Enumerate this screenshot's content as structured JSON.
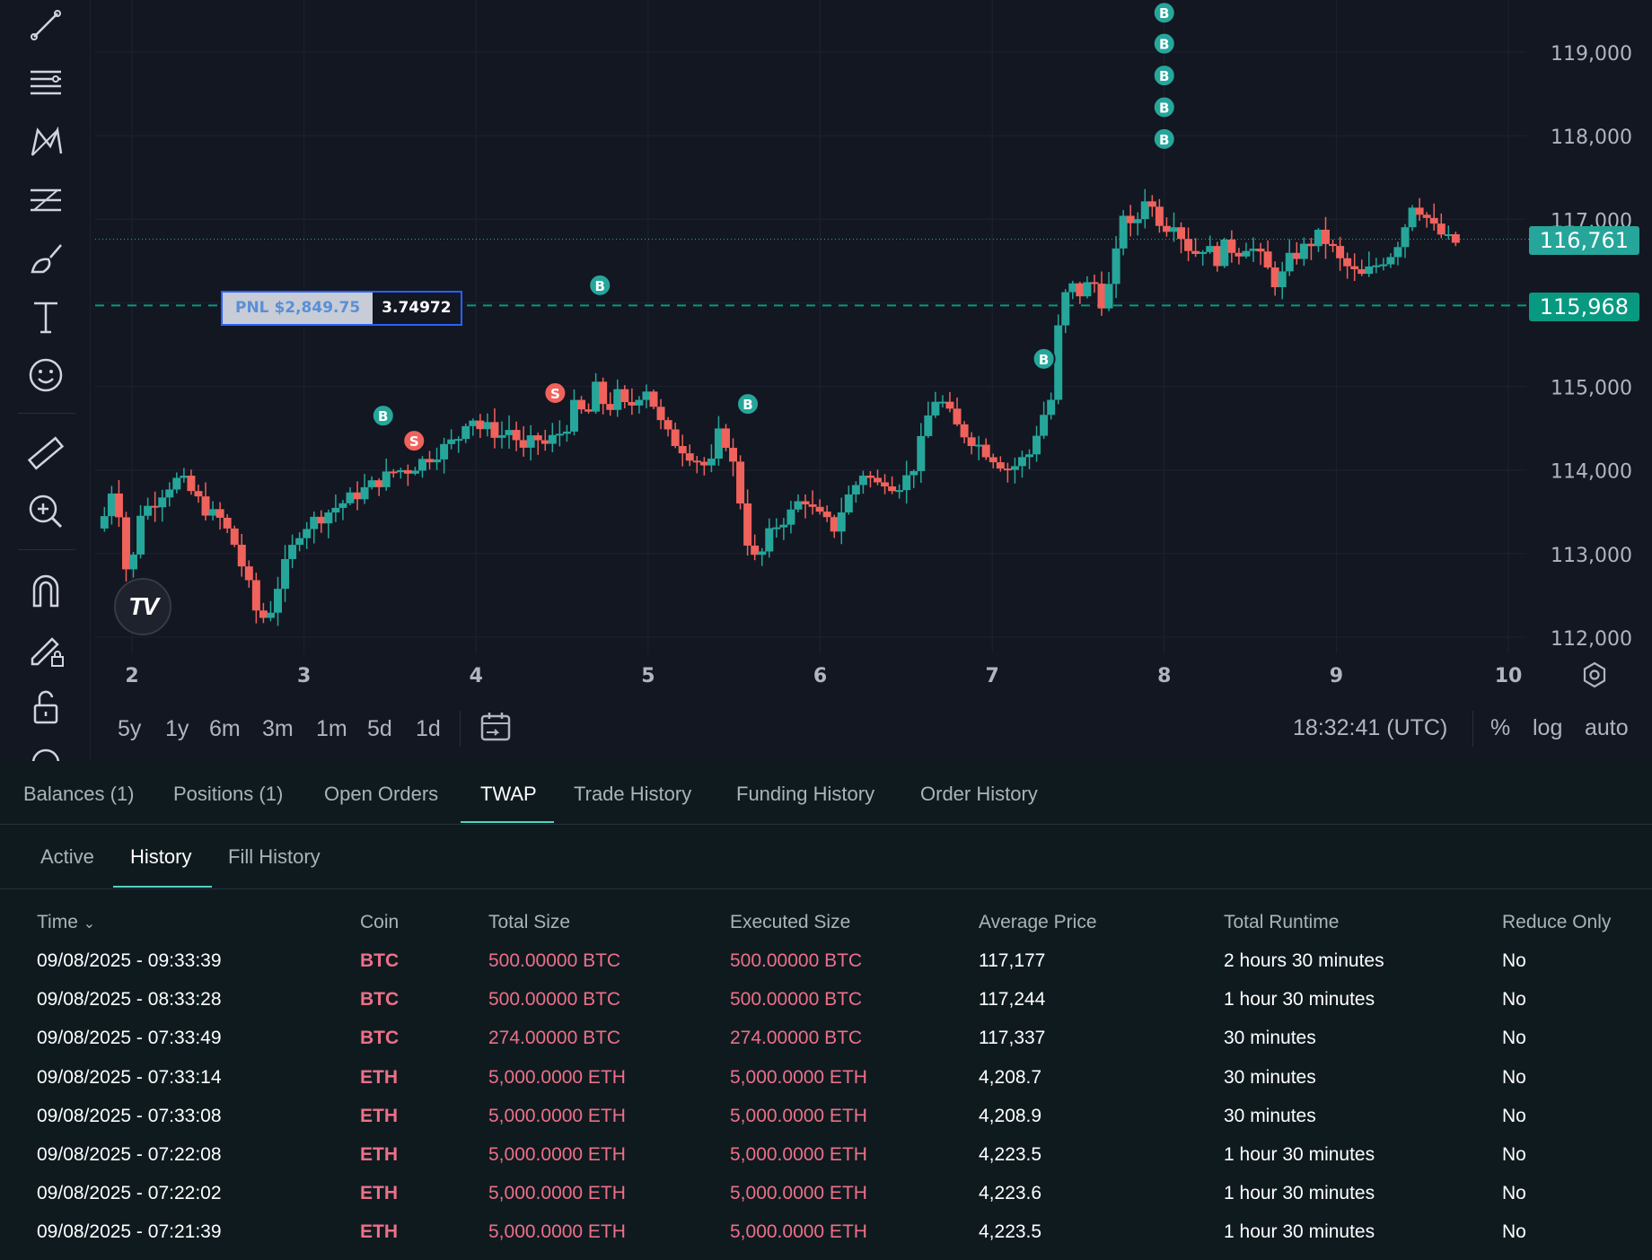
{
  "chart": {
    "y_ticks": [
      "119,000",
      "118,000",
      "117,000",
      "115,000",
      "114,000",
      "113,000",
      "112,000"
    ],
    "x_ticks": [
      "2",
      "3",
      "4",
      "5",
      "6",
      "7",
      "8",
      "9",
      "10"
    ],
    "current_price": {
      "label": "116,761",
      "color": "#26a69a"
    },
    "entry_price": {
      "label": "115,968",
      "color": "#089981"
    },
    "pnl": {
      "label": "PNL $2,849.75",
      "value": "3.74972"
    },
    "colors": {
      "up": "#26a69a",
      "down": "#f0625c",
      "bg": "#131722",
      "grid": "#1e2230"
    },
    "markers": [
      {
        "t": "B",
        "day": 8.0,
        "price": 119470
      },
      {
        "t": "B",
        "day": 8.0,
        "price": 119100
      },
      {
        "t": "B",
        "day": 8.0,
        "price": 118720
      },
      {
        "t": "B",
        "day": 8.0,
        "price": 118340
      },
      {
        "t": "B",
        "day": 8.0,
        "price": 117960
      },
      {
        "t": "B",
        "day": 4.72,
        "price": 116210
      },
      {
        "t": "B",
        "day": 3.46,
        "price": 114650
      },
      {
        "t": "S",
        "day": 3.64,
        "price": 114350
      },
      {
        "t": "S",
        "day": 4.46,
        "price": 114920
      },
      {
        "t": "B",
        "day": 5.58,
        "price": 114790
      },
      {
        "t": "B",
        "day": 7.3,
        "price": 115330
      }
    ]
  },
  "chart_data": {
    "type": "candlestick",
    "x_range": [
      1.8,
      10.1
    ],
    "ylim": [
      111850,
      119750
    ],
    "close_path": [
      [
        1.82,
        113300
      ],
      [
        1.9,
        113900
      ],
      [
        1.98,
        112600
      ],
      [
        2.05,
        113500
      ],
      [
        2.12,
        113600
      ],
      [
        2.2,
        113800
      ],
      [
        2.28,
        113900
      ],
      [
        2.36,
        113700
      ],
      [
        2.44,
        113500
      ],
      [
        2.52,
        113400
      ],
      [
        2.6,
        113100
      ],
      [
        2.68,
        112600
      ],
      [
        2.74,
        112200
      ],
      [
        2.8,
        112300
      ],
      [
        2.86,
        112700
      ],
      [
        2.92,
        113000
      ],
      [
        2.98,
        113300
      ],
      [
        3.06,
        113400
      ],
      [
        3.14,
        113500
      ],
      [
        3.22,
        113600
      ],
      [
        3.3,
        113700
      ],
      [
        3.38,
        113800
      ],
      [
        3.46,
        113900
      ],
      [
        3.54,
        114000
      ],
      [
        3.6,
        114000
      ],
      [
        3.68,
        114100
      ],
      [
        3.76,
        114200
      ],
      [
        3.84,
        114300
      ],
      [
        3.9,
        114400
      ],
      [
        3.96,
        114700
      ],
      [
        4.02,
        114500
      ],
      [
        4.08,
        114500
      ],
      [
        4.14,
        114400
      ],
      [
        4.2,
        114500
      ],
      [
        4.28,
        114200
      ],
      [
        4.34,
        114400
      ],
      [
        4.4,
        114300
      ],
      [
        4.46,
        114400
      ],
      [
        4.52,
        114500
      ],
      [
        4.58,
        114800
      ],
      [
        4.64,
        114600
      ],
      [
        4.7,
        115000
      ],
      [
        4.76,
        114700
      ],
      [
        4.82,
        114900
      ],
      [
        4.88,
        114700
      ],
      [
        4.94,
        114900
      ],
      [
        5.0,
        115000
      ],
      [
        5.06,
        114600
      ],
      [
        5.12,
        114400
      ],
      [
        5.18,
        114300
      ],
      [
        5.24,
        114200
      ],
      [
        5.3,
        114100
      ],
      [
        5.36,
        114000
      ],
      [
        5.42,
        114500
      ],
      [
        5.48,
        114200
      ],
      [
        5.54,
        113600
      ],
      [
        5.6,
        112900
      ],
      [
        5.66,
        113000
      ],
      [
        5.72,
        113300
      ],
      [
        5.78,
        113400
      ],
      [
        5.84,
        113500
      ],
      [
        5.9,
        113700
      ],
      [
        5.96,
        113500
      ],
      [
        6.02,
        113400
      ],
      [
        6.08,
        113300
      ],
      [
        6.14,
        113600
      ],
      [
        6.2,
        113800
      ],
      [
        6.26,
        114000
      ],
      [
        6.32,
        113800
      ],
      [
        6.38,
        113900
      ],
      [
        6.44,
        113800
      ],
      [
        6.5,
        113900
      ],
      [
        6.56,
        114100
      ],
      [
        6.62,
        114600
      ],
      [
        6.68,
        114900
      ],
      [
        6.74,
        114700
      ],
      [
        6.8,
        114500
      ],
      [
        6.86,
        114400
      ],
      [
        6.92,
        114300
      ],
      [
        6.98,
        114200
      ],
      [
        7.04,
        114100
      ],
      [
        7.1,
        114000
      ],
      [
        7.16,
        114100
      ],
      [
        7.22,
        114200
      ],
      [
        7.28,
        114600
      ],
      [
        7.34,
        114800
      ],
      [
        7.4,
        116000
      ],
      [
        7.46,
        116200
      ],
      [
        7.52,
        116100
      ],
      [
        7.58,
        116300
      ],
      [
        7.64,
        116000
      ],
      [
        7.7,
        116300
      ],
      [
        7.76,
        117100
      ],
      [
        7.82,
        116800
      ],
      [
        7.88,
        117300
      ],
      [
        7.94,
        117100
      ],
      [
        8.0,
        116900
      ],
      [
        8.06,
        117000
      ],
      [
        8.12,
        116700
      ],
      [
        8.18,
        116600
      ],
      [
        8.24,
        116700
      ],
      [
        8.3,
        116500
      ],
      [
        8.36,
        116700
      ],
      [
        8.42,
        116600
      ],
      [
        8.48,
        116700
      ],
      [
        8.54,
        116600
      ],
      [
        8.6,
        116400
      ],
      [
        8.66,
        116200
      ],
      [
        8.72,
        116500
      ],
      [
        8.78,
        116600
      ],
      [
        8.84,
        116700
      ],
      [
        8.9,
        116800
      ],
      [
        8.96,
        116700
      ],
      [
        9.02,
        116500
      ],
      [
        9.08,
        116400
      ],
      [
        9.14,
        116300
      ],
      [
        9.2,
        116400
      ],
      [
        9.26,
        116500
      ],
      [
        9.32,
        116600
      ],
      [
        9.38,
        116800
      ],
      [
        9.44,
        117200
      ],
      [
        9.5,
        117100
      ],
      [
        9.56,
        116900
      ],
      [
        9.62,
        116800
      ],
      [
        9.68,
        116700
      ],
      [
        9.72,
        116761
      ]
    ]
  },
  "toolbar": {
    "tools": [
      "trend-line-icon",
      "horizontal-lines-icon",
      "pattern-icon",
      "fib-icon",
      "brush-icon",
      "text-icon",
      "emoji-icon",
      "ruler-icon",
      "zoom-icon",
      "magnet-icon",
      "lock-drawing-icon",
      "unlock-icon",
      "eye-icon"
    ]
  },
  "bottom_bar": {
    "ranges": [
      "5y",
      "1y",
      "6m",
      "3m",
      "1m",
      "5d",
      "1d"
    ],
    "time": "18:32:41 (UTC)",
    "options": [
      "%",
      "log",
      "auto"
    ]
  },
  "tabs": {
    "main": [
      "Balances (1)",
      "Positions (1)",
      "Open Orders",
      "TWAP",
      "Trade History",
      "Funding History",
      "Order History"
    ],
    "active_main": 3,
    "sub": [
      "Active",
      "History",
      "Fill History"
    ],
    "active_sub": 1
  },
  "table": {
    "headers": [
      "Time",
      "Coin",
      "Total Size",
      "Executed Size",
      "Average Price",
      "Total Runtime",
      "Reduce Only"
    ],
    "rows": [
      [
        "09/08/2025 - 09:33:39",
        "BTC",
        "500.00000 BTC",
        "500.00000 BTC",
        "117,177",
        "2 hours 30 minutes",
        "No"
      ],
      [
        "09/08/2025 - 08:33:28",
        "BTC",
        "500.00000 BTC",
        "500.00000 BTC",
        "117,244",
        "1 hour 30 minutes",
        "No"
      ],
      [
        "09/08/2025 - 07:33:49",
        "BTC",
        "274.00000 BTC",
        "274.00000 BTC",
        "117,337",
        "30 minutes",
        "No"
      ],
      [
        "09/08/2025 - 07:33:14",
        "ETH",
        "5,000.0000 ETH",
        "5,000.0000 ETH",
        "4,208.7",
        "30 minutes",
        "No"
      ],
      [
        "09/08/2025 - 07:33:08",
        "ETH",
        "5,000.0000 ETH",
        "5,000.0000 ETH",
        "4,208.9",
        "30 minutes",
        "No"
      ],
      [
        "09/08/2025 - 07:22:08",
        "ETH",
        "5,000.0000 ETH",
        "5,000.0000 ETH",
        "4,223.5",
        "1 hour 30 minutes",
        "No"
      ],
      [
        "09/08/2025 - 07:22:02",
        "ETH",
        "5,000.0000 ETH",
        "5,000.0000 ETH",
        "4,223.6",
        "1 hour 30 minutes",
        "No"
      ],
      [
        "09/08/2025 - 07:21:39",
        "ETH",
        "5,000.0000 ETH",
        "5,000.0000 ETH",
        "4,223.5",
        "1 hour 30 minutes",
        "No"
      ]
    ]
  }
}
